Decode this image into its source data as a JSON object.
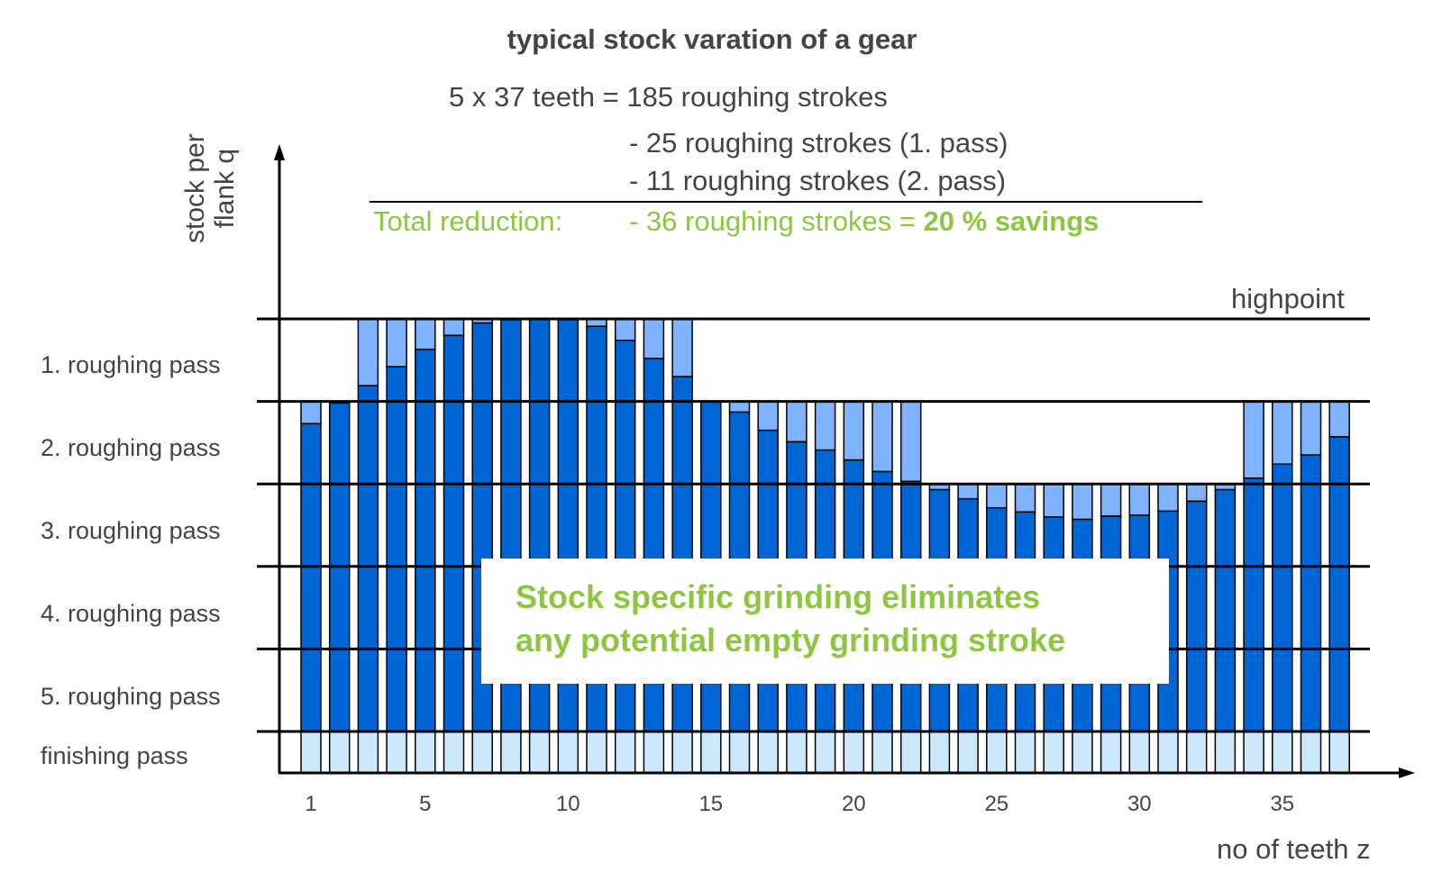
{
  "title": "typical stock varation of a gear",
  "summary": {
    "line1": "5 x 37 teeth = 185 roughing strokes",
    "line2": "- 25 roughing strokes (1. pass)",
    "line3": "- 11 roughing strokes (2. pass)",
    "total_label": "Total reduction:",
    "total_value": "- 36 roughing strokes = ",
    "total_savings": "20 % savings"
  },
  "callout": {
    "line1": "Stock specific grinding eliminates",
    "line2": "any potential empty grinding stroke"
  },
  "colors": {
    "stock": "#0066d6",
    "empty_stroke": "#80b3ff",
    "finishing": "#cce8fb",
    "green": "#8dc63f"
  },
  "chart_data": {
    "type": "bar",
    "title": "typical stock varation of a gear",
    "xlabel": "no of teeth z",
    "ylabel": "stock per flank q",
    "ylabel_lines": [
      "stock per",
      "flank q"
    ],
    "x": [
      1,
      2,
      3,
      4,
      5,
      6,
      7,
      8,
      9,
      10,
      11,
      12,
      13,
      14,
      15,
      16,
      17,
      18,
      19,
      20,
      21,
      22,
      23,
      24,
      25,
      26,
      27,
      28,
      29,
      30,
      31,
      32,
      33,
      34,
      35,
      36,
      37
    ],
    "x_ticks": [
      "1",
      "5",
      "10",
      "15",
      "20",
      "25",
      "30",
      "35"
    ],
    "x_tick_values": [
      1,
      5,
      10,
      15,
      20,
      25,
      30,
      35
    ],
    "stock_in_passes": [
      3.73,
      3.98,
      4.19,
      4.42,
      4.63,
      4.8,
      4.95,
      4.99,
      5.0,
      4.99,
      4.91,
      4.74,
      4.52,
      4.3,
      4.0,
      3.87,
      3.65,
      3.51,
      3.41,
      3.29,
      3.15,
      3.03,
      2.93,
      2.82,
      2.71,
      2.66,
      2.6,
      2.57,
      2.61,
      2.62,
      2.67,
      2.79,
      2.93,
      3.07,
      3.24,
      3.35,
      3.57
    ],
    "ylim": [
      0,
      5
    ],
    "levels": [
      "finishing pass",
      "5. roughing pass",
      "4. roughing pass",
      "3. roughing pass",
      "2. roughing pass",
      "1. roughing pass"
    ],
    "highpoint_label": "highpoint",
    "series": [
      {
        "name": "stock (dark blue)"
      },
      {
        "name": "empty grinding stroke (light blue)"
      },
      {
        "name": "finishing pass (light cyan)"
      }
    ]
  }
}
